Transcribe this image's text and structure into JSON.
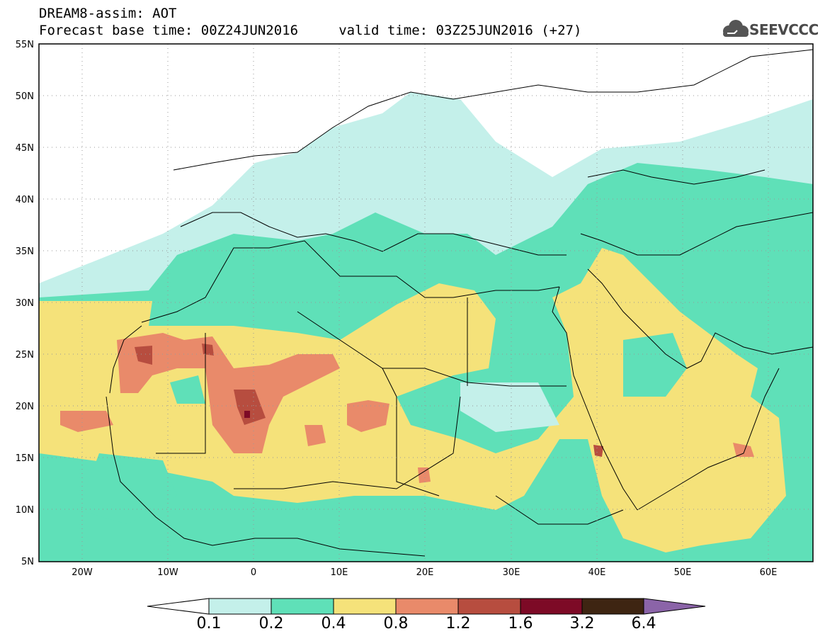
{
  "title": {
    "line1": "DREAM8-assim: AOT",
    "line2": "Forecast base time: 00Z24JUN2016     valid time: 03Z25JUN2016 (+27)"
  },
  "logo": {
    "text": "SEEVCCC",
    "icon": "cloud-icon"
  },
  "map": {
    "lon_range": [
      -25,
      65
    ],
    "lat_range": [
      5,
      55
    ],
    "lat_ticks": [
      "5N",
      "10N",
      "15N",
      "20N",
      "25N",
      "30N",
      "35N",
      "40N",
      "45N",
      "50N",
      "55N"
    ],
    "lon_ticks": [
      "20W",
      "10W",
      "0",
      "10E",
      "20E",
      "30E",
      "40E",
      "50E",
      "60E"
    ]
  },
  "colorbar": {
    "labels": [
      "0.1",
      "0.2",
      "0.4",
      "0.8",
      "1.2",
      "1.6",
      "3.2",
      "6.4"
    ],
    "colors": [
      "#ffffff",
      "#c4f0ea",
      "#5fe0b8",
      "#f5e27a",
      "#e98a6a",
      "#b74d3f",
      "#7d0a26",
      "#3e2512",
      "#8b64a8"
    ]
  }
}
